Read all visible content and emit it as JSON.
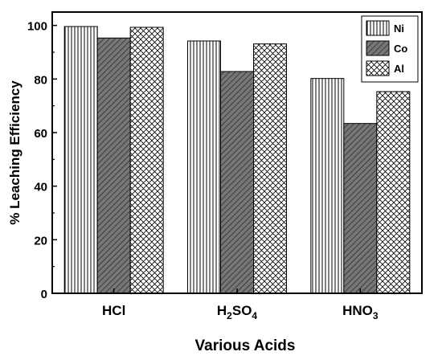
{
  "chart_data": {
    "type": "bar",
    "title": "",
    "xlabel": "Various Acids",
    "ylabel": "% Leaching Efficiency",
    "ylim": [
      0,
      105
    ],
    "yticks": [
      0,
      20,
      40,
      60,
      80,
      100
    ],
    "categories": [
      {
        "parts": [
          {
            "t": "HCl",
            "sub": false
          }
        ]
      },
      {
        "parts": [
          {
            "t": "H",
            "sub": false
          },
          {
            "t": "2",
            "sub": true
          },
          {
            "t": "SO",
            "sub": false
          },
          {
            "t": "4",
            "sub": true
          }
        ]
      },
      {
        "parts": [
          {
            "t": "HNO",
            "sub": false
          },
          {
            "t": "3",
            "sub": true
          }
        ]
      }
    ],
    "series": [
      {
        "name": "Ni",
        "pattern": "vertical-lines",
        "values": [
          99.6,
          94.2,
          80.2
        ]
      },
      {
        "name": "Co",
        "pattern": "diagonal-dark",
        "values": [
          95.3,
          82.8,
          63.4
        ]
      },
      {
        "name": "Al",
        "pattern": "crosshatch",
        "values": [
          99.3,
          93.1,
          75.3
        ]
      }
    ],
    "legend_position": "top-right",
    "grid": false
  }
}
